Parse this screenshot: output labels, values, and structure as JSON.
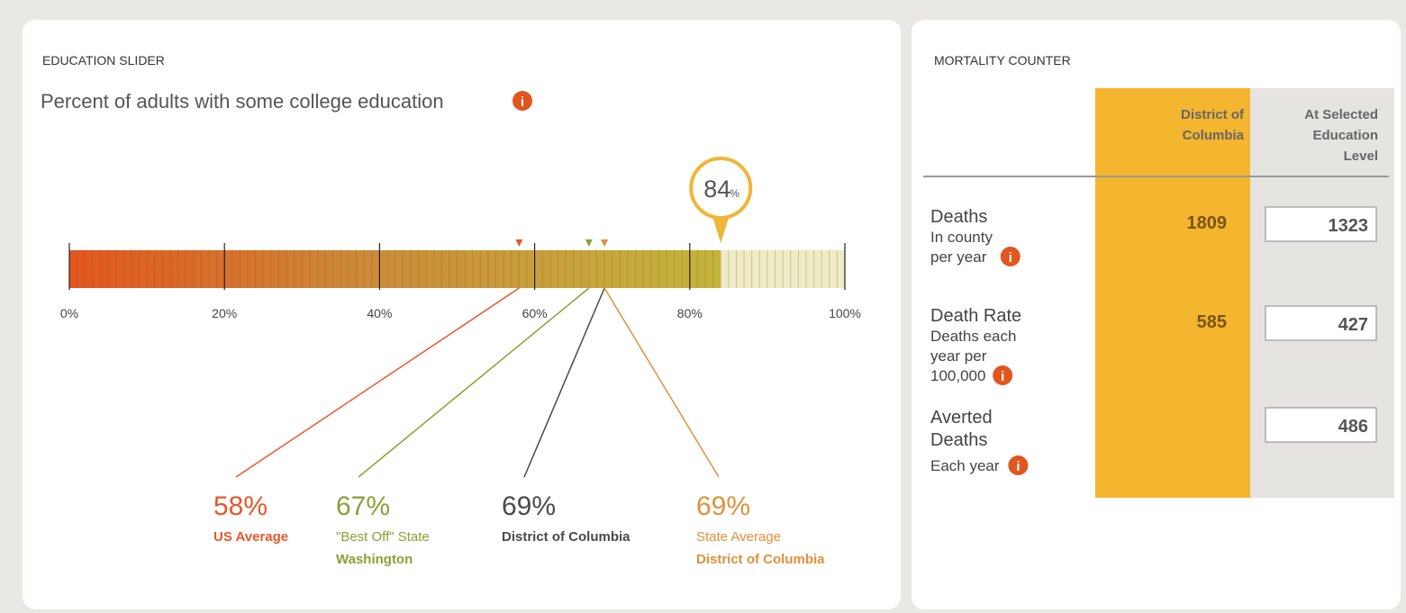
{
  "slider": {
    "title": "EDUCATION SLIDER",
    "subtitle": "Percent of adults with some college education",
    "ticks": [
      {
        "value": 0,
        "label": "0%"
      },
      {
        "value": 20,
        "label": "20%"
      },
      {
        "value": 40,
        "label": "40%"
      },
      {
        "value": 60,
        "label": "60%"
      },
      {
        "value": 80,
        "label": "80%"
      },
      {
        "value": 100,
        "label": "100%"
      }
    ],
    "selected": {
      "value": 84,
      "label": "84",
      "unit": "%"
    },
    "markers": [
      {
        "value": 58,
        "label": "58%",
        "color": "#e8572a",
        "lines": [
          "US Average"
        ]
      },
      {
        "value": 67,
        "label": "67%",
        "color": "#8aa035",
        "lines": [
          "\"Best Off\" State",
          "Washington"
        ]
      },
      {
        "value": 69,
        "label": "69%",
        "color": "#4a4a4a",
        "lines": [
          "District of Columbia"
        ]
      },
      {
        "value": 69,
        "label": "69%",
        "color": "#e0913a",
        "lines": [
          "State Average",
          "District of Columbia"
        ]
      }
    ]
  },
  "mortality": {
    "title": "MORTALITY COUNTER",
    "columns": [
      [
        "District of",
        "Columbia"
      ],
      [
        "At Selected",
        "Education",
        "Level"
      ]
    ],
    "rows": [
      {
        "label": "Deaths",
        "detail": [
          "In county",
          "per year"
        ],
        "county": "1809",
        "selected": "1323"
      },
      {
        "label": "Death Rate",
        "detail": [
          "Deaths each",
          "year per",
          "100,000"
        ],
        "county": "585",
        "selected": "427"
      },
      {
        "label": "Averted Deaths",
        "detail": [
          "Each year"
        ],
        "selected": "486"
      }
    ]
  }
}
